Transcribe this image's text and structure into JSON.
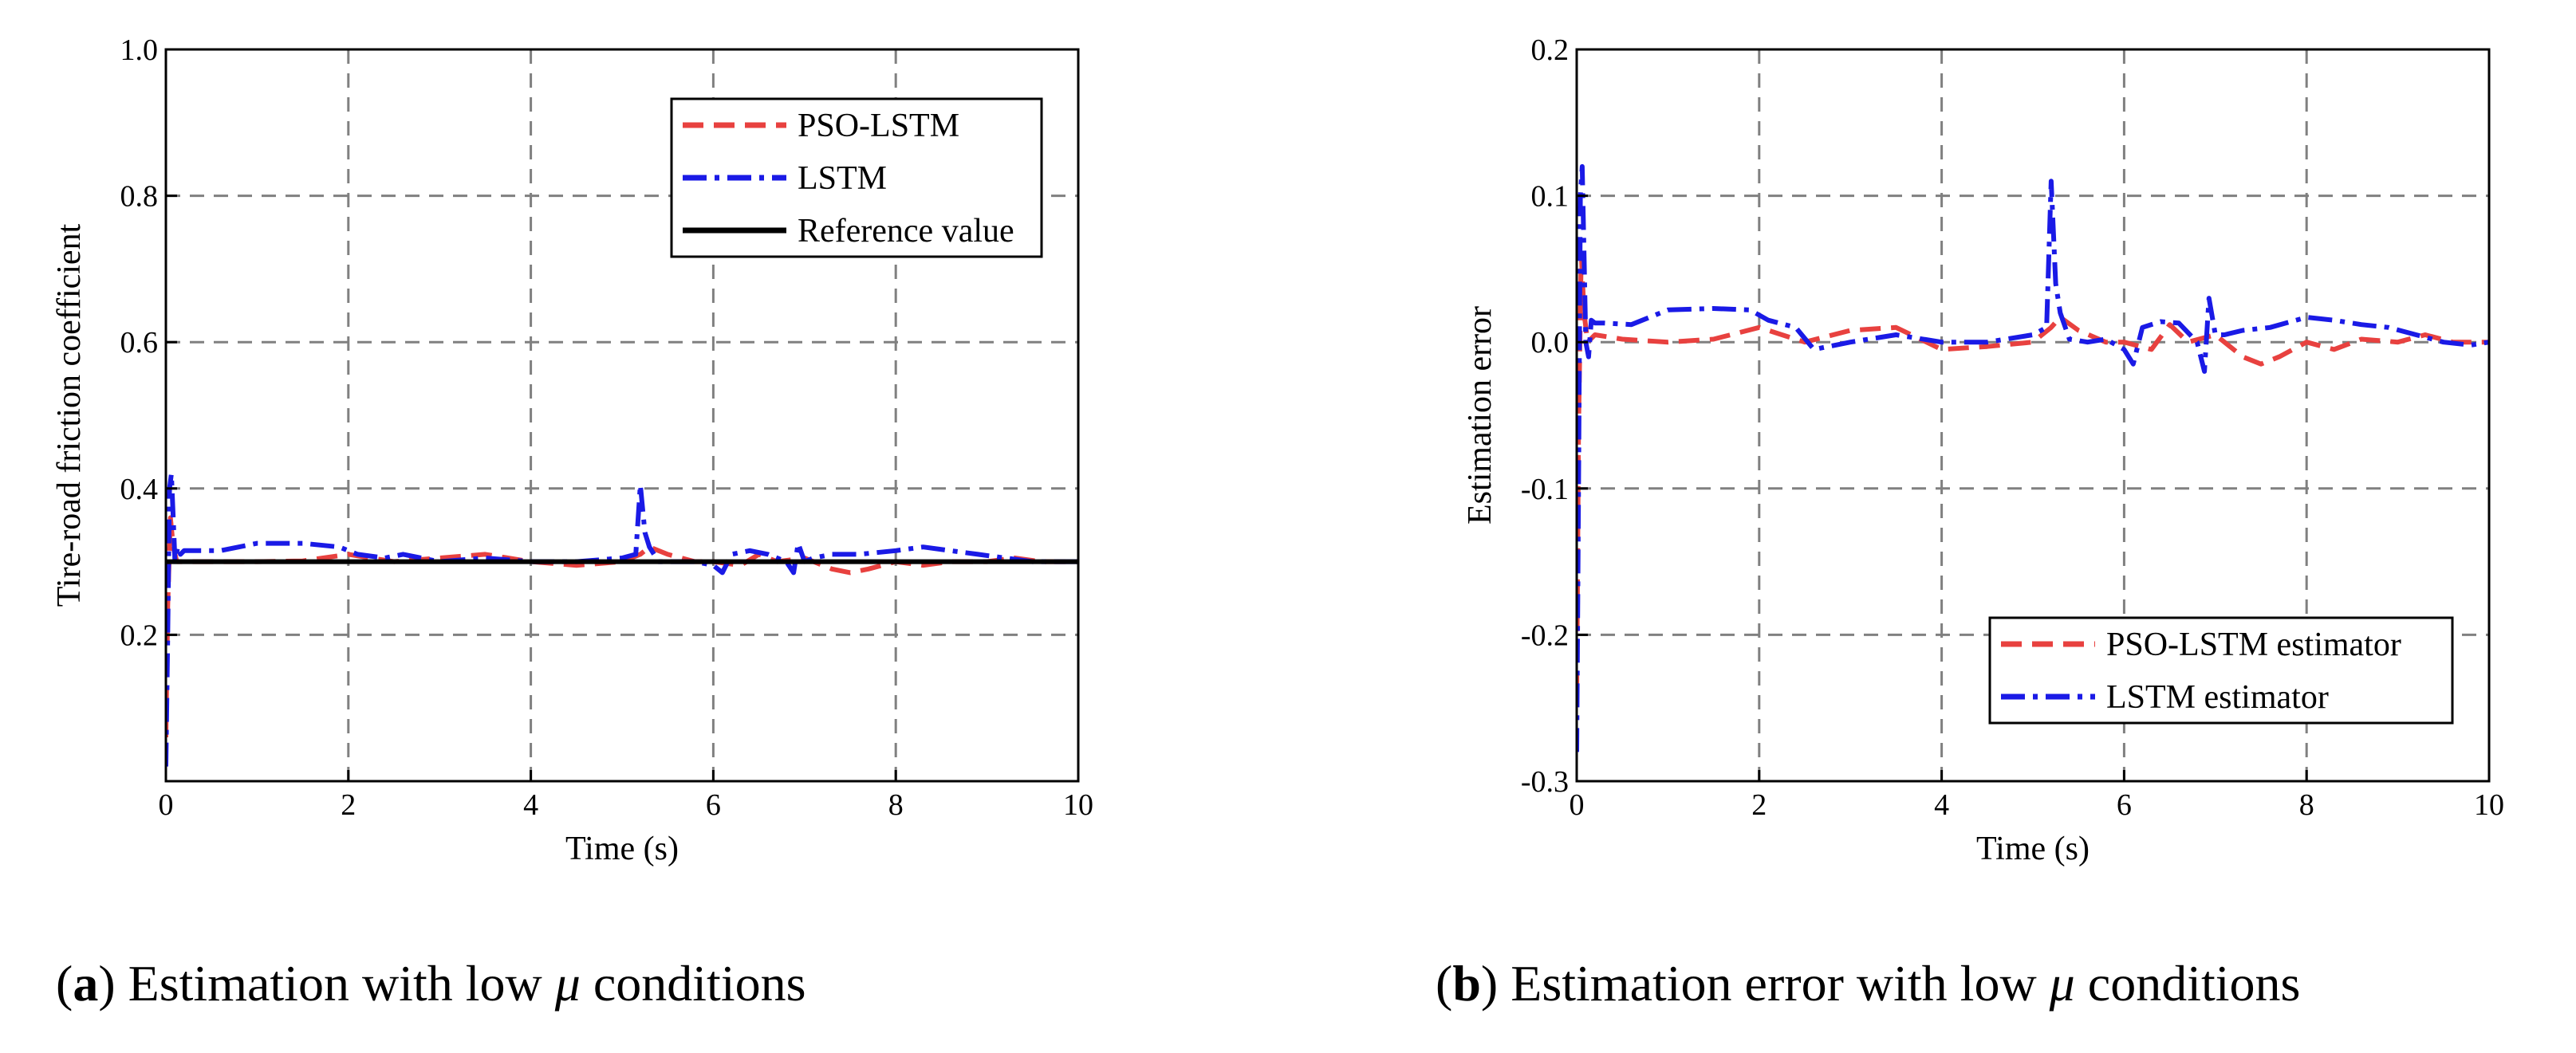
{
  "figure": {
    "caption_a": {
      "letter": "a",
      "text": " Estimation with low ",
      "symbol": "μ",
      "tail": " conditions"
    },
    "caption_b": {
      "letter": "b",
      "text": " Estimation error with low ",
      "symbol": "μ",
      "tail": " conditions"
    }
  },
  "chart_data": [
    {
      "id": "a",
      "type": "line",
      "title": "",
      "xlabel": "Time (s)",
      "ylabel": "Tire-road friction coefficient",
      "xlim": [
        0,
        10
      ],
      "ylim": [
        0,
        1.0
      ],
      "xticks": [
        0,
        2,
        4,
        6,
        8,
        10
      ],
      "xtick_labels": [
        "0",
        "2",
        "4",
        "6",
        "8",
        "10"
      ],
      "yticks": [
        0.2,
        0.4,
        0.6,
        0.8,
        1.0
      ],
      "ytick_labels": [
        "0.2",
        "0.4",
        "0.6",
        "0.8",
        "1.0"
      ],
      "grid": true,
      "legend_position": "top-right",
      "series": [
        {
          "name": "PSO-LSTM",
          "color": "#e8413f",
          "dash": "dashed",
          "x": [
            0,
            0.02,
            0.05,
            0.08,
            0.12,
            0.2,
            0.5,
            1.0,
            1.5,
            2.0,
            2.5,
            3.0,
            3.5,
            4.0,
            4.5,
            5.0,
            5.2,
            5.3,
            5.5,
            5.8,
            6.0,
            6.3,
            6.5,
            6.7,
            7.0,
            7.3,
            7.5,
            7.7,
            8.0,
            8.3,
            8.6,
            9.0,
            9.3,
            9.6,
            10.0
          ],
          "y": [
            0.06,
            0.24,
            0.36,
            0.32,
            0.3,
            0.3,
            0.3,
            0.3,
            0.301,
            0.31,
            0.3,
            0.305,
            0.31,
            0.3,
            0.295,
            0.3,
            0.31,
            0.32,
            0.31,
            0.3,
            0.3,
            0.295,
            0.31,
            0.3,
            0.305,
            0.29,
            0.285,
            0.29,
            0.3,
            0.295,
            0.3,
            0.3,
            0.305,
            0.3,
            0.3
          ]
        },
        {
          "name": "LSTM",
          "color": "#1a1ae6",
          "dash": "dashdot",
          "x": [
            0,
            0.02,
            0.04,
            0.06,
            0.08,
            0.1,
            0.13,
            0.16,
            0.2,
            0.3,
            0.6,
            1.0,
            1.5,
            1.9,
            2.1,
            2.4,
            2.6,
            3.0,
            3.5,
            4.0,
            4.5,
            5.0,
            5.15,
            5.2,
            5.25,
            5.3,
            5.4,
            5.6,
            5.8,
            6.0,
            6.1,
            6.2,
            6.4,
            6.6,
            6.8,
            6.88,
            6.93,
            7.0,
            7.1,
            7.3,
            7.6,
            8.0,
            8.3,
            8.6,
            8.9,
            9.2,
            9.5,
            9.8,
            10.0
          ],
          "y": [
            0.02,
            0.2,
            0.4,
            0.42,
            0.36,
            0.3,
            0.32,
            0.31,
            0.315,
            0.315,
            0.315,
            0.325,
            0.325,
            0.32,
            0.31,
            0.305,
            0.31,
            0.3,
            0.305,
            0.3,
            0.3,
            0.305,
            0.31,
            0.405,
            0.34,
            0.32,
            0.3,
            0.3,
            0.3,
            0.295,
            0.285,
            0.31,
            0.315,
            0.31,
            0.3,
            0.285,
            0.325,
            0.3,
            0.305,
            0.31,
            0.31,
            0.315,
            0.32,
            0.315,
            0.31,
            0.305,
            0.3,
            0.3,
            0.3
          ]
        },
        {
          "name": "Reference value",
          "color": "#000000",
          "dash": "solid",
          "x": [
            0,
            10
          ],
          "y": [
            0.3,
            0.3
          ]
        }
      ]
    },
    {
      "id": "b",
      "type": "line",
      "title": "",
      "xlabel": "Time (s)",
      "ylabel": "Estimation error",
      "xlim": [
        0,
        10
      ],
      "ylim": [
        -0.3,
        0.2
      ],
      "xticks": [
        0,
        2,
        4,
        6,
        8,
        10
      ],
      "xtick_labels": [
        "0",
        "2",
        "4",
        "6",
        "8",
        "10"
      ],
      "yticks": [
        -0.3,
        -0.2,
        -0.1,
        0.0,
        0.1,
        0.2
      ],
      "ytick_labels": [
        "-0.3",
        "-0.2",
        "-0.1",
        "0.0",
        "0.1",
        "0.2"
      ],
      "grid": true,
      "legend_position": "bottom-right",
      "series": [
        {
          "name": "PSO-LSTM estimator",
          "color": "#e8413f",
          "dash": "dashed",
          "x": [
            0,
            0.02,
            0.05,
            0.08,
            0.12,
            0.2,
            0.5,
            1.0,
            1.5,
            2.0,
            2.5,
            3.0,
            3.5,
            4.0,
            4.5,
            5.0,
            5.2,
            5.3,
            5.5,
            5.8,
            6.0,
            6.3,
            6.5,
            6.7,
            7.0,
            7.3,
            7.5,
            7.7,
            8.0,
            8.3,
            8.6,
            9.0,
            9.3,
            9.6,
            10.0
          ],
          "y": [
            -0.24,
            -0.06,
            0.06,
            0.02,
            0.0,
            0.005,
            0.002,
            0.0,
            0.002,
            0.01,
            0.0,
            0.008,
            0.01,
            -0.005,
            -0.003,
            0.0,
            0.01,
            0.017,
            0.008,
            0.0,
            0.0,
            -0.005,
            0.012,
            0.0,
            0.005,
            -0.01,
            -0.015,
            -0.01,
            0.0,
            -0.005,
            0.002,
            0.0,
            0.005,
            0.0,
            0.0
          ]
        },
        {
          "name": "LSTM estimator",
          "color": "#1a1ae6",
          "dash": "dashdot",
          "x": [
            0,
            0.02,
            0.04,
            0.06,
            0.08,
            0.1,
            0.13,
            0.16,
            0.2,
            0.3,
            0.6,
            1.0,
            1.5,
            1.9,
            2.1,
            2.4,
            2.6,
            3.0,
            3.5,
            4.0,
            4.5,
            5.0,
            5.15,
            5.2,
            5.25,
            5.3,
            5.4,
            5.6,
            5.8,
            6.0,
            6.1,
            6.2,
            6.4,
            6.6,
            6.8,
            6.88,
            6.93,
            7.0,
            7.1,
            7.3,
            7.6,
            8.0,
            8.3,
            8.6,
            8.9,
            9.2,
            9.5,
            9.8,
            10.0
          ],
          "y": [
            -0.28,
            -0.1,
            0.1,
            0.12,
            0.06,
            0.0,
            -0.01,
            0.015,
            0.013,
            0.013,
            0.012,
            0.022,
            0.023,
            0.022,
            0.015,
            0.01,
            -0.005,
            0.0,
            0.005,
            0.0,
            0.0,
            0.005,
            0.01,
            0.11,
            0.04,
            0.02,
            0.002,
            0.0,
            0.002,
            -0.005,
            -0.015,
            0.01,
            0.014,
            0.013,
            0.0,
            -0.02,
            0.03,
            0.005,
            0.005,
            0.008,
            0.01,
            0.017,
            0.015,
            0.012,
            0.01,
            0.005,
            0.0,
            -0.002,
            0.0
          ]
        }
      ]
    }
  ]
}
